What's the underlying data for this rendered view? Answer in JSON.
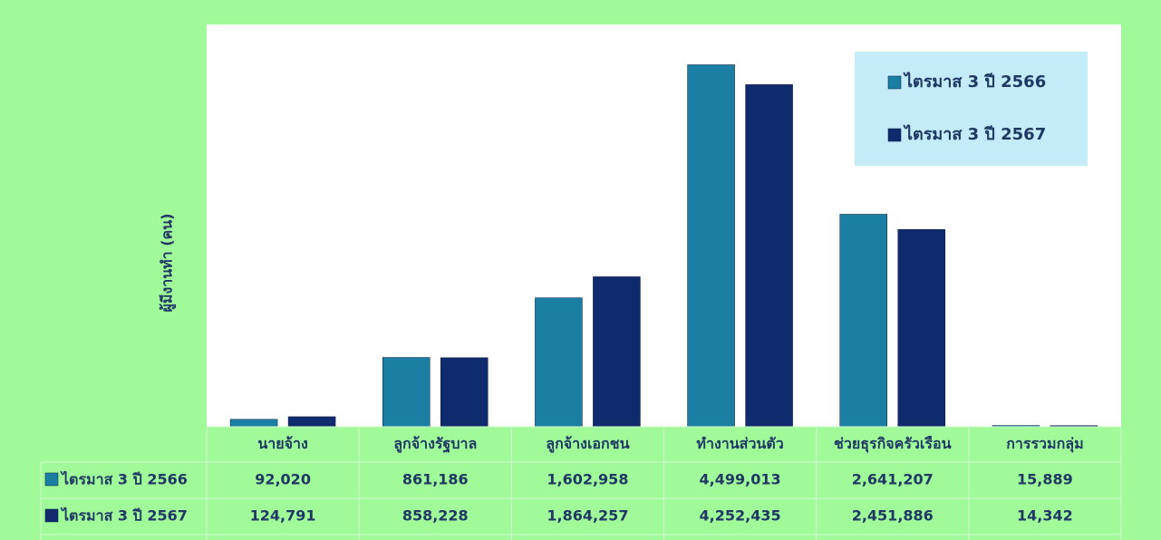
{
  "chart_data": {
    "type": "bar",
    "y_label": "ผู้มีงานทำ (คน)",
    "categories": [
      "นายจ้าง",
      "ลูกจ้างรัฐบาล",
      "ลูกจ้างเอกชน",
      "ทำงานส่วนตัว",
      "ช่วยธุรกิจครัวเรือน",
      "การรวมกลุ่ม"
    ],
    "series": [
      {
        "name": "ไตรมาส 3 ปี 2566",
        "color": "#1b7fa3",
        "values": [
          92020,
          861186,
          1602958,
          4499013,
          2641207,
          15889
        ],
        "value_labels": [
          "92,020",
          "861,186",
          "1,602,958",
          "4,499,013",
          "2,641,207",
          "15,889"
        ]
      },
      {
        "name": "ไตรมาส 3 ปี 2567",
        "color": "#102a6e",
        "values": [
          124791,
          858228,
          1864257,
          4252435,
          2451886,
          14342
        ],
        "value_labels": [
          "124,791",
          "858,228",
          "1,864,257",
          "4,252,435",
          "2,451,886",
          "14,342"
        ]
      }
    ],
    "ylim": [
      0,
      5000000
    ],
    "legend": "upper right"
  }
}
